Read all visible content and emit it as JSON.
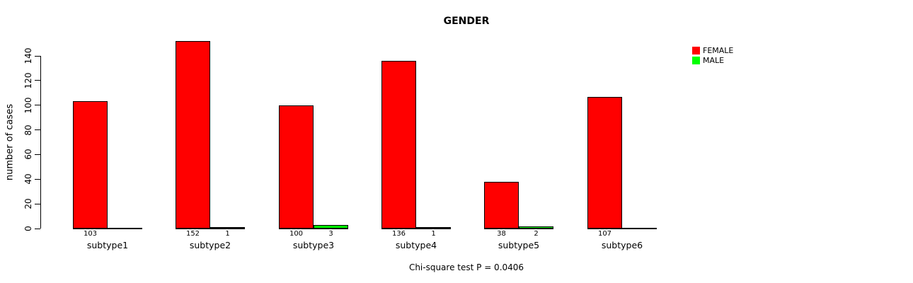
{
  "title": "GENDER",
  "caption": "Chi-square test P = 0.0406",
  "y_axis": {
    "label": "number of cases",
    "ticks": [
      0,
      20,
      40,
      60,
      80,
      100,
      120,
      140
    ]
  },
  "legend": {
    "items": [
      {
        "label": "FEMALE",
        "color": "#ff0000"
      },
      {
        "label": "MALE",
        "color": "#00ff00"
      }
    ]
  },
  "chart_data": {
    "type": "bar",
    "categories": [
      "subtype1",
      "subtype2",
      "subtype3",
      "subtype4",
      "subtype5",
      "subtype6"
    ],
    "series": [
      {
        "name": "FEMALE",
        "color": "#ff0000",
        "values": [
          103,
          152,
          100,
          136,
          38,
          107
        ]
      },
      {
        "name": "MALE",
        "color": "#00ff00",
        "values": [
          0,
          1,
          3,
          1,
          2,
          0
        ]
      }
    ],
    "title": "GENDER",
    "xlabel": "",
    "ylabel": "number of cases",
    "ylim": [
      0,
      140
    ],
    "grid": false,
    "legend_position": "top-right",
    "bar_value_labels": "shown under baseline for every non-zero bar",
    "annotation": "Chi-square test P = 0.0406"
  }
}
